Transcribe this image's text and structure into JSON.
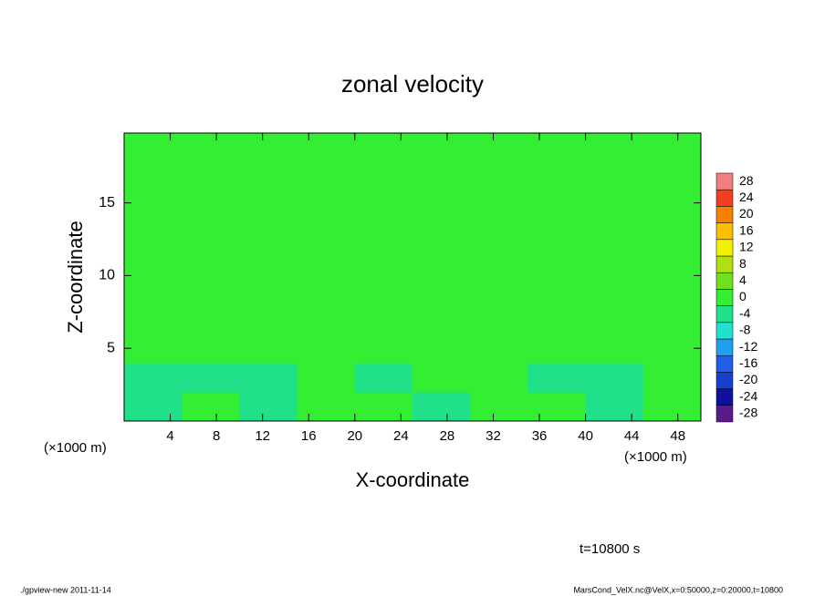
{
  "chart_data": {
    "type": "contour",
    "title": "zonal velocity",
    "xlabel": "X-coordinate",
    "ylabel": "Z-coordinate",
    "xunit": "(×1000 m)",
    "annotation": "t=10800 s",
    "footer_left": "./gpview-new  2011-11-14",
    "footer_right": "MarsCond_VelX.nc@VelX,x=0:50000,z=0:20000,t=10800",
    "xlim": [
      0,
      50
    ],
    "ylim": [
      0,
      19.8
    ],
    "xticks": [
      4,
      8,
      12,
      16,
      20,
      24,
      28,
      32,
      36,
      40,
      44,
      48
    ],
    "yticks": [
      5,
      10,
      15
    ],
    "xbins": [
      0,
      5,
      10,
      15,
      20,
      25,
      30,
      35,
      40,
      45,
      50
    ],
    "ybins": [
      0,
      2,
      4,
      6,
      10,
      14,
      19.8
    ],
    "z": [
      [
        -3,
        -1,
        -3,
        -2,
        -1,
        -3,
        -1,
        -2,
        -3,
        -1
      ],
      [
        -3,
        -4,
        -3,
        -2,
        -4,
        -1,
        -2,
        -3,
        -3,
        -2
      ],
      [
        -1,
        -1,
        -1,
        -1,
        -1,
        -1,
        -2,
        -1,
        -1,
        -1
      ],
      [
        0,
        0,
        0,
        0,
        0,
        0,
        0,
        0,
        0,
        0
      ],
      [
        0,
        0,
        1,
        0,
        0,
        0,
        0,
        0,
        0,
        0
      ],
      [
        1,
        0,
        0,
        1,
        0,
        0,
        0,
        0,
        0,
        0
      ]
    ],
    "levels": [
      -30,
      -26,
      -22,
      -18,
      -14,
      -10,
      -6,
      -2,
      2,
      6,
      10,
      14,
      18,
      22,
      26,
      30
    ],
    "colors": [
      "#5a1a8a",
      "#1010a0",
      "#1840d0",
      "#2060e8",
      "#20a0f0",
      "#20e0d0",
      "#20e08a",
      "#33ee33",
      "#70e020",
      "#b0e010",
      "#f0f000",
      "#f8c000",
      "#f88000",
      "#f04020",
      "#f08080"
    ],
    "colorbar_ticks": [
      28,
      24,
      20,
      16,
      12,
      8,
      4,
      0,
      -4,
      -8,
      -12,
      -16,
      -20,
      -24,
      -28
    ]
  }
}
